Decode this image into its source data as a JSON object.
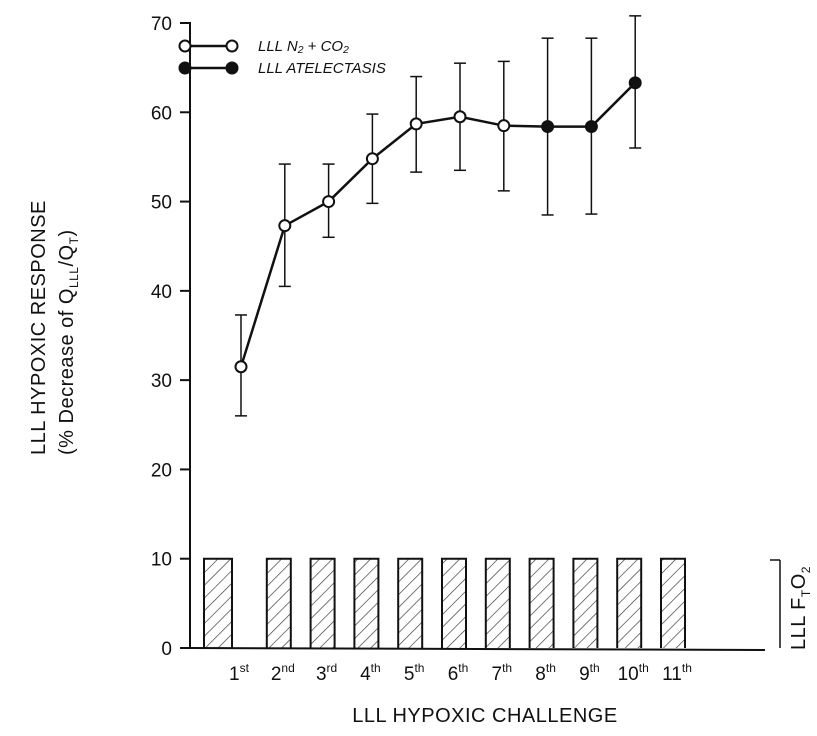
{
  "chart_data": {
    "type": "line",
    "title": "",
    "xlabel": "LLL HYPOXIC CHALLENGE",
    "ylabel_line1": "LLL HYPOXIC RESPONSE",
    "ylabel_line2_prefix": "(% Decrease of Q",
    "ylabel_sub_lll": "LLL",
    "ylabel_mid": "/Q",
    "ylabel_sub_t": "T",
    "ylabel_suffix": ")",
    "right_label_main": "LLL F",
    "right_label_sub_t": "T",
    "right_label_o": "O",
    "right_label_sub_2": "2",
    "ylim": [
      0,
      70
    ],
    "yticks": [
      "0",
      "10",
      "20",
      "30",
      "40",
      "50",
      "60",
      "70"
    ],
    "categories": [
      {
        "num": "1",
        "suffix": "st"
      },
      {
        "num": "2",
        "suffix": "nd"
      },
      {
        "num": "3",
        "suffix": "rd"
      },
      {
        "num": "4",
        "suffix": "th"
      },
      {
        "num": "5",
        "suffix": "th"
      },
      {
        "num": "6",
        "suffix": "th"
      },
      {
        "num": "7",
        "suffix": "th"
      },
      {
        "num": "8",
        "suffix": "th"
      },
      {
        "num": "9",
        "suffix": "th"
      },
      {
        "num": "10",
        "suffix": "th"
      },
      {
        "num": "11",
        "suffix": "th"
      }
    ],
    "series": [
      {
        "label": "LLL N₂ + CO₂",
        "marker": "open-circle",
        "x": [
          1,
          2,
          3,
          4,
          5,
          6,
          7
        ],
        "y": [
          31.5,
          47.3,
          50.0,
          54.8,
          58.7,
          59.5,
          58.5
        ],
        "err_low": [
          26.0,
          40.5,
          46.0,
          49.8,
          53.3,
          53.5,
          51.2
        ],
        "err_high": [
          37.3,
          54.2,
          54.2,
          59.8,
          64.0,
          65.5,
          65.7
        ]
      },
      {
        "label": "LLL ATELECTASIS",
        "marker": "filled-circle",
        "x": [
          8,
          9,
          10
        ],
        "y": [
          58.4,
          58.4,
          63.3
        ],
        "err_low": [
          48.5,
          48.6,
          56.0
        ],
        "err_high": [
          68.3,
          68.3,
          70.8
        ]
      }
    ],
    "fio2_profile": {
      "high": 10,
      "low": 0,
      "pulses": 11
    },
    "legend_position": "top-left",
    "grid": false
  }
}
